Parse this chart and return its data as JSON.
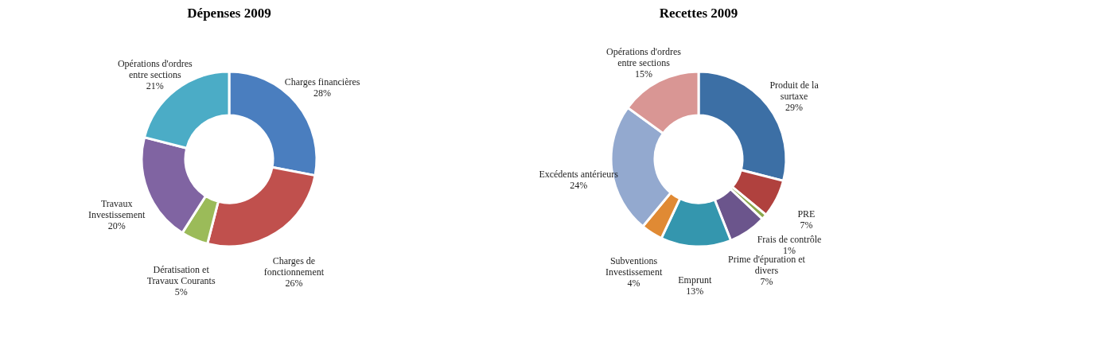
{
  "chart_data": [
    {
      "type": "donut",
      "title": "Dépenses 2009",
      "categories": [
        "Charges financières",
        "Charges de fonctionnement",
        "Dératisation et Travaux Courants",
        "Travaux Investissement",
        "Opérations d'ordres entre sections"
      ],
      "values": [
        28,
        26,
        5,
        20,
        21
      ],
      "colors": [
        "#4a7ebf",
        "#c0504d",
        "#9bbb59",
        "#8064a2",
        "#4bacc6"
      ],
      "value_labels": [
        "28%",
        "26%",
        "5%",
        "20%",
        "21%"
      ],
      "legend": false
    },
    {
      "type": "donut",
      "title": "Recettes 2009",
      "categories": [
        "Produit de la surtaxe",
        "PRE",
        "Frais de contrôle",
        "Prime d'épuration et divers",
        "Emprunt",
        "Subventions Investissement",
        "Excédents antérieurs",
        "Opérations d'ordres entre sections"
      ],
      "values": [
        29,
        7,
        1,
        7,
        13,
        4,
        24,
        15
      ],
      "colors": [
        "#3c6fa5",
        "#b0413e",
        "#8aa84b",
        "#6b558c",
        "#3496ae",
        "#e08a34",
        "#93a9cf",
        "#d99694"
      ],
      "value_labels": [
        "29%",
        "7%",
        "1%",
        "7%",
        "13%",
        "4%",
        "24%",
        "15%"
      ],
      "legend": false
    }
  ]
}
